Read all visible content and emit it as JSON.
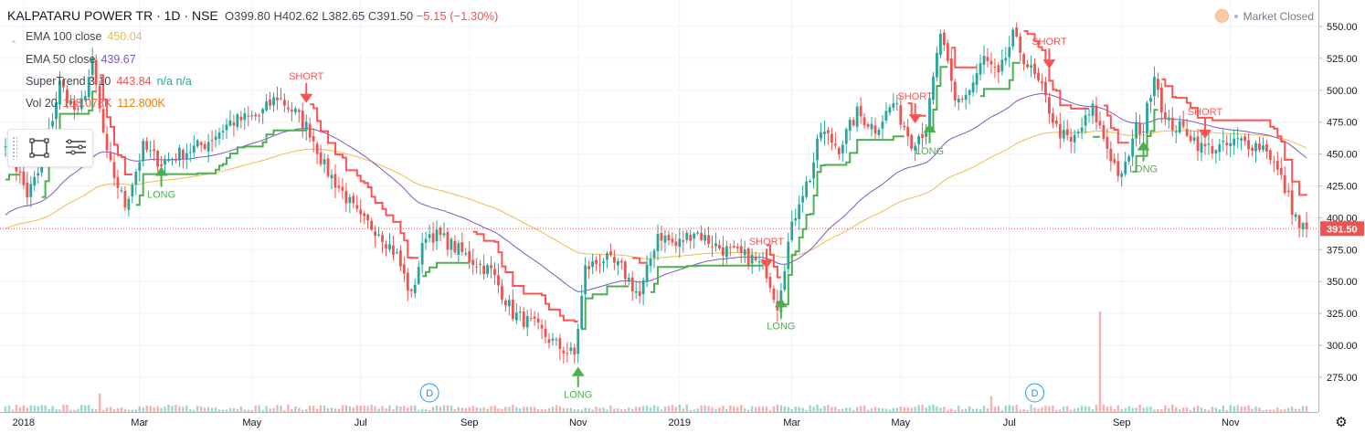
{
  "header": {
    "symbol": "KALPATARU POWER TR · 1D · NSE",
    "open": "O399.80",
    "high": "H402.62",
    "low": "L382.65",
    "close": "C391.50",
    "change": "−5.15 (−1.30%)"
  },
  "market_status": "Market Closed",
  "indicators": [
    {
      "label": "EMA 100 close",
      "value": "450.04",
      "color": "#f2b94a"
    },
    {
      "label": "EMA 50 close",
      "value": "439.67",
      "color": "#7e57c2"
    },
    {
      "label": "SuperTrend 3 10",
      "value": "443.84",
      "extra": "n/a n/a",
      "color": "#ef5350",
      "extra_color": "#26a69a"
    },
    {
      "label": "Vol 20",
      "value": "188.078K",
      "extra": "112.800K",
      "color": "#ef5350",
      "extra_color": "#f57c00"
    }
  ],
  "colors": {
    "up": "#26a69a",
    "down": "#ef5350",
    "ema100": "#f2b94a",
    "ema50": "#7e57c2",
    "st_up": "#4caf50",
    "st_down": "#ff5252",
    "grid": "#f0f3fa",
    "axis_text": "#131722"
  },
  "icons": {
    "gear": "gear-icon",
    "rectangle_tool": "rectangle-icon",
    "list_tool": "object-tree-icon"
  },
  "chart_data": {
    "type": "candlestick",
    "y_axis": {
      "ticks": [
        550,
        525,
        500,
        475,
        450,
        425,
        400,
        375,
        350,
        325,
        300,
        275
      ],
      "tick_labels": [
        "550.00",
        "525.00",
        "500.00",
        "475.00",
        "450.00",
        "425.00",
        "400.00",
        "375.00",
        "350.00",
        "325.00",
        "300.00",
        "275.00"
      ],
      "range": [
        261,
        561
      ]
    },
    "x_axis": {
      "labels": [
        "2018",
        "Mar",
        "May",
        "Jul",
        "Sep",
        "Nov",
        "2019",
        "Mar",
        "May",
        "Jul",
        "Sep",
        "Nov"
      ],
      "label_indices": [
        5,
        37,
        68,
        98,
        128,
        158,
        186,
        217,
        247,
        277,
        308,
        338
      ],
      "total_bars": 360
    },
    "last_price": {
      "value": 391.5,
      "label": "391.50"
    },
    "signals": [
      {
        "type": "LONG",
        "index": 43,
        "price": 440
      },
      {
        "type": "SHORT",
        "index": 83,
        "price": 490
      },
      {
        "type": "LONG",
        "index": 158,
        "price": 283
      },
      {
        "type": "SHORT",
        "index": 210,
        "price": 360
      },
      {
        "type": "LONG",
        "index": 214,
        "price": 337
      },
      {
        "type": "SHORT",
        "index": 251,
        "price": 474
      },
      {
        "type": "LONG",
        "index": 255,
        "price": 474
      },
      {
        "type": "SHORT",
        "index": 288,
        "price": 517
      },
      {
        "type": "LONG",
        "index": 314,
        "price": 460
      },
      {
        "type": "SHORT",
        "index": 331,
        "price": 462
      }
    ],
    "dividend_markers": [
      {
        "label": "D",
        "index": 117
      },
      {
        "label": "D",
        "index": 284
      }
    ],
    "price_anchors": [
      [
        0,
        462
      ],
      [
        6,
        418
      ],
      [
        10,
        440
      ],
      [
        15,
        505
      ],
      [
        20,
        480
      ],
      [
        24,
        520
      ],
      [
        28,
        448
      ],
      [
        33,
        410
      ],
      [
        38,
        455
      ],
      [
        43,
        443
      ],
      [
        48,
        450
      ],
      [
        55,
        458
      ],
      [
        62,
        475
      ],
      [
        70,
        480
      ],
      [
        75,
        495
      ],
      [
        80,
        482
      ],
      [
        84,
        468
      ],
      [
        88,
        440
      ],
      [
        93,
        420
      ],
      [
        98,
        398
      ],
      [
        103,
        390
      ],
      [
        108,
        370
      ],
      [
        112,
        338
      ],
      [
        116,
        388
      ],
      [
        120,
        385
      ],
      [
        128,
        368
      ],
      [
        134,
        358
      ],
      [
        140,
        325
      ],
      [
        146,
        315
      ],
      [
        152,
        300
      ],
      [
        157,
        292
      ],
      [
        160,
        360
      ],
      [
        165,
        368
      ],
      [
        170,
        360
      ],
      [
        175,
        338
      ],
      [
        180,
        388
      ],
      [
        185,
        378
      ],
      [
        190,
        390
      ],
      [
        196,
        378
      ],
      [
        201,
        372
      ],
      [
        206,
        368
      ],
      [
        210,
        358
      ],
      [
        213,
        332
      ],
      [
        216,
        380
      ],
      [
        219,
        415
      ],
      [
        222,
        432
      ],
      [
        225,
        468
      ],
      [
        230,
        455
      ],
      [
        235,
        482
      ],
      [
        240,
        470
      ],
      [
        245,
        490
      ],
      [
        250,
        460
      ],
      [
        254,
        470
      ],
      [
        258,
        545
      ],
      [
        262,
        490
      ],
      [
        266,
        500
      ],
      [
        270,
        525
      ],
      [
        274,
        510
      ],
      [
        278,
        542
      ],
      [
        282,
        520
      ],
      [
        286,
        500
      ],
      [
        290,
        470
      ],
      [
        294,
        458
      ],
      [
        300,
        485
      ],
      [
        305,
        448
      ],
      [
        308,
        430
      ],
      [
        312,
        470
      ],
      [
        314,
        470
      ],
      [
        317,
        515
      ],
      [
        320,
        475
      ],
      [
        326,
        468
      ],
      [
        330,
        455
      ],
      [
        336,
        455
      ],
      [
        340,
        460
      ],
      [
        344,
        458
      ],
      [
        348,
        455
      ],
      [
        352,
        430
      ],
      [
        357,
        393
      ],
      [
        359,
        391.5
      ]
    ],
    "volume_spikes": [
      {
        "index": 302,
        "value": 2270
      },
      {
        "index": 26,
        "value": 420
      },
      {
        "index": 272,
        "value": 360
      }
    ]
  }
}
